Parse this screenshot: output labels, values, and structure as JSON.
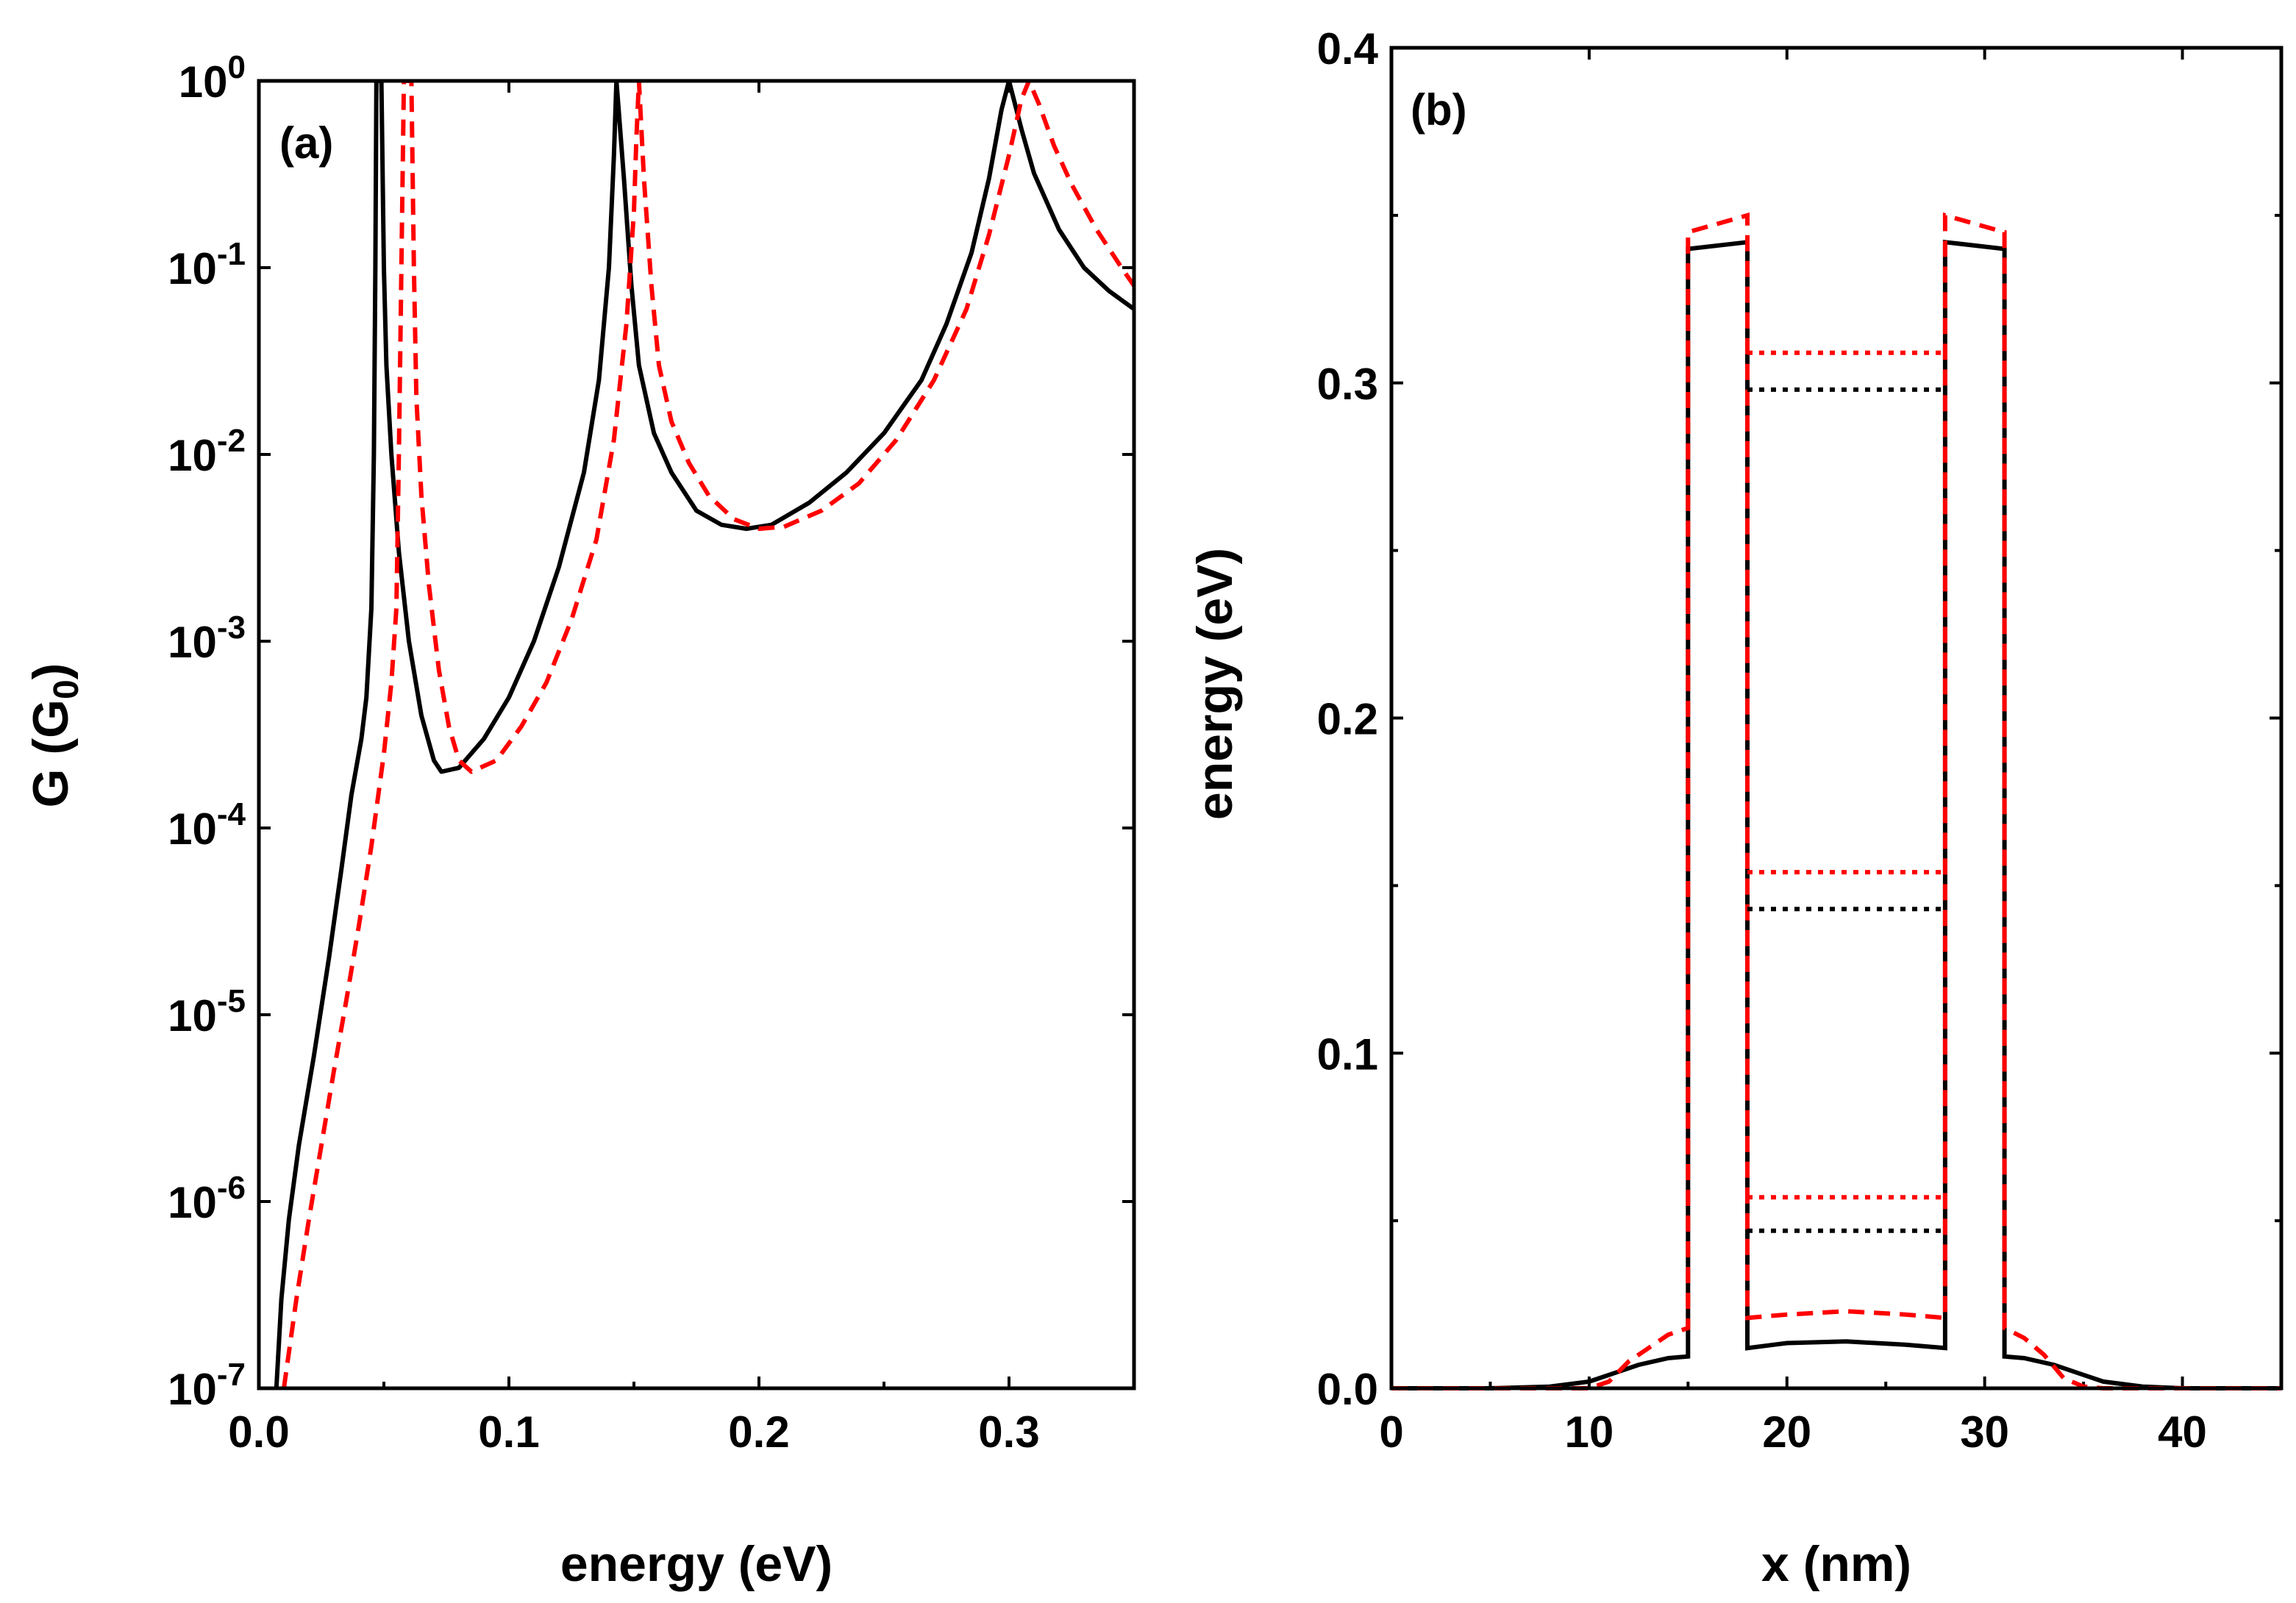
{
  "figure": {
    "colors": {
      "black": "#000000",
      "red": "#ff0000"
    }
  },
  "chart_data": [
    {
      "type": "line",
      "panel_label": "(a)",
      "xlabel": "energy (eV)",
      "ylabel": {
        "base": "G (G",
        "sub": "0",
        "close": ")"
      },
      "xlim": [
        0.0,
        0.35
      ],
      "yscale": "log",
      "ylim": [
        1e-07,
        1
      ],
      "x_ticks": [
        {
          "value": 0.0,
          "label": "0.0"
        },
        {
          "value": 0.1,
          "label": "0.1"
        },
        {
          "value": 0.2,
          "label": "0.2"
        },
        {
          "value": 0.3,
          "label": "0.3"
        }
      ],
      "y_ticks": [
        {
          "value": 1e-07,
          "base": "10",
          "exp": "-7"
        },
        {
          "value": 1e-06,
          "base": "10",
          "exp": "-6"
        },
        {
          "value": 1e-05,
          "base": "10",
          "exp": "-5"
        },
        {
          "value": 0.0001,
          "base": "10",
          "exp": "-4"
        },
        {
          "value": 0.001,
          "base": "10",
          "exp": "-3"
        },
        {
          "value": 0.01,
          "base": "10",
          "exp": "-2"
        },
        {
          "value": 0.1,
          "base": "10",
          "exp": "-1"
        },
        {
          "value": 1,
          "base": "10",
          "exp": "0"
        }
      ],
      "series": [
        {
          "name": "solid",
          "color": "#000000",
          "style": "solid",
          "points": [
            [
              0.007,
              1e-07
            ],
            [
              0.009,
              3e-07
            ],
            [
              0.012,
              8e-07
            ],
            [
              0.016,
              2e-06
            ],
            [
              0.022,
              6e-06
            ],
            [
              0.028,
              2e-05
            ],
            [
              0.033,
              6e-05
            ],
            [
              0.037,
              0.00015
            ],
            [
              0.041,
              0.0003
            ],
            [
              0.043,
              0.0005
            ],
            [
              0.045,
              0.0015
            ],
            [
              0.046,
              0.01
            ],
            [
              0.0466,
              0.1
            ],
            [
              0.047,
              1
            ],
            [
              0.049,
              1
            ],
            [
              0.05,
              0.1
            ],
            [
              0.051,
              0.03
            ],
            [
              0.053,
              0.01
            ],
            [
              0.056,
              0.003
            ],
            [
              0.06,
              0.001
            ],
            [
              0.065,
              0.0004
            ],
            [
              0.07,
              0.00023
            ],
            [
              0.073,
              0.0002
            ],
            [
              0.08,
              0.00021
            ],
            [
              0.09,
              0.0003
            ],
            [
              0.1,
              0.0005
            ],
            [
              0.11,
              0.001
            ],
            [
              0.12,
              0.0025
            ],
            [
              0.13,
              0.008
            ],
            [
              0.136,
              0.025
            ],
            [
              0.14,
              0.1
            ],
            [
              0.142,
              0.4
            ],
            [
              0.143,
              1
            ],
            [
              0.146,
              0.3
            ],
            [
              0.149,
              0.08
            ],
            [
              0.152,
              0.03
            ],
            [
              0.158,
              0.013
            ],
            [
              0.165,
              0.008
            ],
            [
              0.175,
              0.005
            ],
            [
              0.185,
              0.0042
            ],
            [
              0.195,
              0.004
            ],
            [
              0.205,
              0.0042
            ],
            [
              0.22,
              0.0055
            ],
            [
              0.235,
              0.008
            ],
            [
              0.25,
              0.013
            ],
            [
              0.265,
              0.025
            ],
            [
              0.275,
              0.05
            ],
            [
              0.285,
              0.12
            ],
            [
              0.292,
              0.3
            ],
            [
              0.297,
              0.7
            ],
            [
              0.3,
              1
            ],
            [
              0.305,
              0.55
            ],
            [
              0.31,
              0.32
            ],
            [
              0.32,
              0.16
            ],
            [
              0.33,
              0.1
            ],
            [
              0.34,
              0.075
            ],
            [
              0.35,
              0.06
            ]
          ]
        },
        {
          "name": "dashed",
          "color": "#ff0000",
          "style": "dashed",
          "points": [
            [
              0.01,
              1e-07
            ],
            [
              0.015,
              3e-07
            ],
            [
              0.02,
              8e-07
            ],
            [
              0.025,
              2e-06
            ],
            [
              0.03,
              5e-06
            ],
            [
              0.035,
              1.2e-05
            ],
            [
              0.04,
              3e-05
            ],
            [
              0.045,
              8e-05
            ],
            [
              0.05,
              0.00025
            ],
            [
              0.053,
              0.0006
            ],
            [
              0.055,
              0.0015
            ],
            [
              0.056,
              0.01
            ],
            [
              0.057,
              0.1
            ],
            [
              0.058,
              1
            ],
            [
              0.061,
              1
            ],
            [
              0.062,
              0.1
            ],
            [
              0.063,
              0.02
            ],
            [
              0.065,
              0.006
            ],
            [
              0.068,
              0.002
            ],
            [
              0.072,
              0.0007
            ],
            [
              0.076,
              0.00035
            ],
            [
              0.08,
              0.00023
            ],
            [
              0.085,
              0.0002
            ],
            [
              0.095,
              0.00023
            ],
            [
              0.105,
              0.00035
            ],
            [
              0.115,
              0.0006
            ],
            [
              0.125,
              0.0013
            ],
            [
              0.135,
              0.0035
            ],
            [
              0.142,
              0.012
            ],
            [
              0.147,
              0.05
            ],
            [
              0.15,
              0.2
            ],
            [
              0.151,
              0.5
            ],
            [
              0.152,
              1
            ],
            [
              0.154,
              0.3
            ],
            [
              0.157,
              0.08
            ],
            [
              0.16,
              0.03
            ],
            [
              0.165,
              0.015
            ],
            [
              0.172,
              0.009
            ],
            [
              0.18,
              0.006
            ],
            [
              0.19,
              0.0045
            ],
            [
              0.2,
              0.004
            ],
            [
              0.21,
              0.0041
            ],
            [
              0.225,
              0.005
            ],
            [
              0.24,
              0.007
            ],
            [
              0.255,
              0.012
            ],
            [
              0.27,
              0.025
            ],
            [
              0.283,
              0.06
            ],
            [
              0.292,
              0.15
            ],
            [
              0.3,
              0.4
            ],
            [
              0.305,
              0.8
            ],
            [
              0.308,
              1
            ],
            [
              0.312,
              0.75
            ],
            [
              0.318,
              0.45
            ],
            [
              0.325,
              0.28
            ],
            [
              0.335,
              0.16
            ],
            [
              0.345,
              0.1
            ],
            [
              0.35,
              0.08
            ]
          ]
        }
      ]
    },
    {
      "type": "line",
      "panel_label": "(b)",
      "xlabel": "x (nm)",
      "ylabel": "energy (eV)",
      "xlim": [
        0,
        45
      ],
      "ylim": [
        0.0,
        0.4
      ],
      "x_ticks": [
        {
          "value": 0,
          "label": "0"
        },
        {
          "value": 10,
          "label": "10"
        },
        {
          "value": 20,
          "label": "20"
        },
        {
          "value": 30,
          "label": "30"
        },
        {
          "value": 40,
          "label": "40"
        }
      ],
      "y_ticks": [
        {
          "value": 0.0,
          "label": "0.0"
        },
        {
          "value": 0.1,
          "label": "0.1"
        },
        {
          "value": 0.2,
          "label": "0.2"
        },
        {
          "value": 0.3,
          "label": "0.3"
        },
        {
          "value": 0.4,
          "label": "0.4"
        }
      ],
      "y_minor_ticks": [
        0.05,
        0.15,
        0.25,
        0.35
      ],
      "x_minor_ticks": [
        5,
        15,
        25,
        35
      ],
      "series": [
        {
          "name": "potential-solid",
          "color": "#000000",
          "style": "solid",
          "points": [
            [
              0,
              0
            ],
            [
              5,
              0
            ],
            [
              8,
              0.0005
            ],
            [
              10,
              0.002
            ],
            [
              11,
              0.004
            ],
            [
              12.5,
              0.007
            ],
            [
              14,
              0.009
            ],
            [
              15,
              0.0095
            ],
            [
              15,
              0.34
            ],
            [
              18,
              0.342
            ],
            [
              18,
              0.012
            ],
            [
              20,
              0.0135
            ],
            [
              23,
              0.014
            ],
            [
              26,
              0.013
            ],
            [
              28,
              0.012
            ],
            [
              28,
              0.342
            ],
            [
              31,
              0.34
            ],
            [
              31,
              0.0095
            ],
            [
              32,
              0.009
            ],
            [
              33.5,
              0.007
            ],
            [
              34,
              0.006
            ],
            [
              35,
              0.004
            ],
            [
              36,
              0.002
            ],
            [
              38,
              0.0005
            ],
            [
              40,
              0
            ],
            [
              45,
              0
            ]
          ]
        },
        {
          "name": "potential-dashed",
          "color": "#ff0000",
          "style": "dashed",
          "points": [
            [
              0,
              0
            ],
            [
              10,
              0
            ],
            [
              11,
              0.002
            ],
            [
              12,
              0.008
            ],
            [
              13,
              0.012
            ],
            [
              14,
              0.016
            ],
            [
              15,
              0.018
            ],
            [
              15,
              0.345
            ],
            [
              18,
              0.35
            ],
            [
              18,
              0.021
            ],
            [
              20,
              0.022
            ],
            [
              23,
              0.023
            ],
            [
              26,
              0.022
            ],
            [
              28,
              0.021
            ],
            [
              28,
              0.35
            ],
            [
              31,
              0.345
            ],
            [
              31,
              0.018
            ],
            [
              32,
              0.015
            ],
            [
              33,
              0.01
            ],
            [
              34,
              0.003
            ],
            [
              35,
              0.0005
            ],
            [
              36,
              0
            ],
            [
              45,
              0
            ]
          ]
        },
        {
          "name": "level-1-black",
          "color": "#000000",
          "style": "dotted",
          "points": [
            [
              18,
              0.047
            ],
            [
              28,
              0.047
            ]
          ]
        },
        {
          "name": "level-1-red",
          "color": "#ff0000",
          "style": "dotted",
          "points": [
            [
              18,
              0.057
            ],
            [
              28,
              0.057
            ]
          ]
        },
        {
          "name": "level-2-black",
          "color": "#000000",
          "style": "dotted",
          "points": [
            [
              18,
              0.143
            ],
            [
              28,
              0.143
            ]
          ]
        },
        {
          "name": "level-2-red",
          "color": "#ff0000",
          "style": "dotted",
          "points": [
            [
              18,
              0.154
            ],
            [
              28,
              0.154
            ]
          ]
        },
        {
          "name": "level-3-black",
          "color": "#000000",
          "style": "dotted",
          "points": [
            [
              18,
              0.298
            ],
            [
              28,
              0.298
            ]
          ]
        },
        {
          "name": "level-3-red",
          "color": "#ff0000",
          "style": "dotted",
          "points": [
            [
              18,
              0.309
            ],
            [
              28,
              0.309
            ]
          ]
        }
      ]
    }
  ]
}
